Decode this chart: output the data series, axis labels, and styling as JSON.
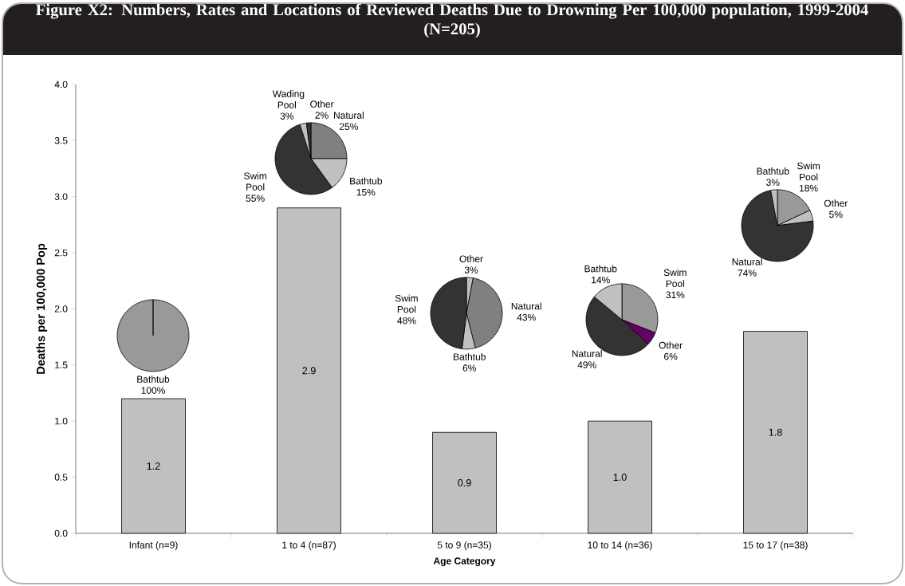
{
  "chart_data": [
    {
      "type": "bar",
      "title": "Figure X2:  Numbers, Rates and Locations of Reviewed Deaths Due to Drowning Per 100,000 population, 1999-2004 (N=205)",
      "xlabel": "Age Category",
      "ylabel": "Deaths per 100,000 Pop",
      "categories": [
        "Infant (n=9)",
        "1 to 4 (n=87)",
        "5 to 9 (n=35)",
        "10 to 14 (n=36)",
        "15 to 17 (n=38)"
      ],
      "values": [
        1.2,
        2.9,
        0.9,
        1.0,
        1.8
      ],
      "value_labels": [
        "1.2",
        "2.9",
        "0.9",
        "1.0",
        "1.8"
      ],
      "color": "#c0c0c0",
      "ylim": [
        0,
        4
      ],
      "yticks": [
        {
          "value": 0,
          "label": "0.0"
        },
        {
          "value": 0.5,
          "label": "0.5"
        },
        {
          "value": 1,
          "label": "1.0"
        },
        {
          "value": 1.5,
          "label": "1.5"
        },
        {
          "value": 2,
          "label": "2.0"
        },
        {
          "value": 2.5,
          "label": "2.5"
        },
        {
          "value": 3,
          "label": "3.0"
        },
        {
          "value": 3.5,
          "label": "3.5"
        },
        {
          "value": 4,
          "label": "4.0"
        }
      ]
    },
    {
      "type": "pie",
      "categories": [
        "Bathtub"
      ],
      "values": [
        100
      ],
      "value_labels": [
        "100%"
      ],
      "colors": [
        "#999999"
      ]
    },
    {
      "type": "pie",
      "categories": [
        "Natural",
        "Bathtub",
        "Swim Pool",
        "Wading Pool",
        "Other"
      ],
      "values": [
        25,
        15,
        55,
        3,
        2
      ],
      "value_labels": [
        "25%",
        "15%",
        "55%",
        "3%",
        "2%"
      ],
      "colors": [
        "#808080",
        "#c0c0c0",
        "#333333",
        "#c0c0c0",
        "#333333"
      ]
    },
    {
      "type": "pie",
      "categories": [
        "Other",
        "Natural",
        "Bathtub",
        "Swim Pool"
      ],
      "values": [
        3,
        43,
        6,
        48
      ],
      "value_labels": [
        "3%",
        "43%",
        "6%",
        "48%"
      ],
      "colors": [
        "#c0c0c0",
        "#808080",
        "#c0c0c0",
        "#333333"
      ]
    },
    {
      "type": "pie",
      "categories": [
        "Swim Pool",
        "Other",
        "Natural",
        "Bathtub"
      ],
      "values": [
        31,
        6,
        49,
        14
      ],
      "value_labels": [
        "31%",
        "6%",
        "49%",
        "14%"
      ],
      "colors": [
        "#999999",
        "#660066",
        "#333333",
        "#c0c0c0"
      ]
    },
    {
      "type": "pie",
      "categories": [
        "Swim Pool",
        "Other",
        "Natural",
        "Bathtub"
      ],
      "values": [
        18,
        5,
        74,
        3
      ],
      "value_labels": [
        "18%",
        "5%",
        "74%",
        "3%"
      ],
      "colors": [
        "#999999",
        "#c0c0c0",
        "#333333",
        "#c0c0c0"
      ]
    }
  ]
}
